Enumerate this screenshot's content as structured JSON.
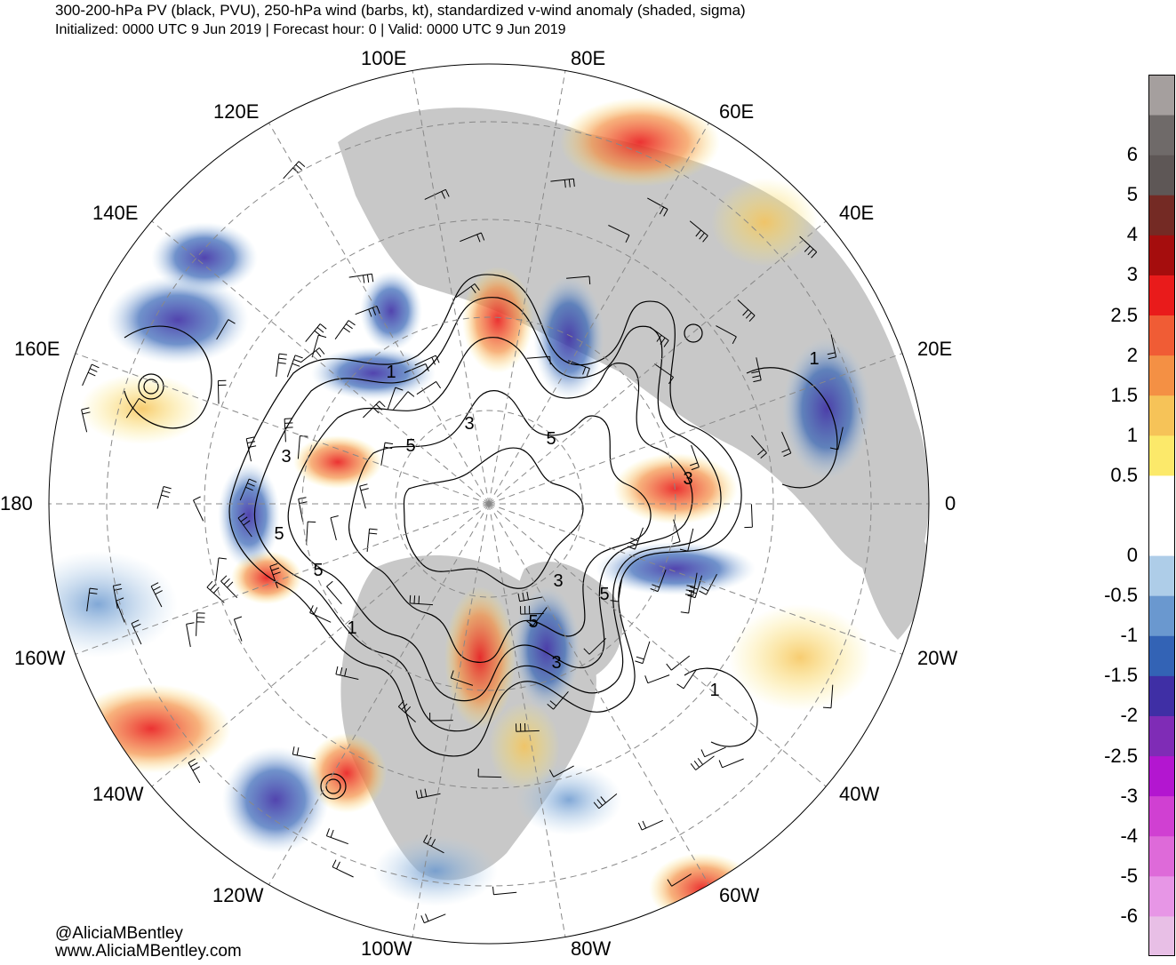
{
  "header": {
    "title": "300-200-hPa PV (black, PVU), 250-hPa wind (barbs, kt), standardized v-wind anomaly (shaded, sigma)",
    "subtitle": "Initialized: 0000 UTC 9 Jun 2019 | Forecast hour: 0 | Valid: 0000 UTC 9 Jun 2019"
  },
  "credits": {
    "handle": "@AliciaMBentley",
    "website": "www.AliciaMBentley.com"
  },
  "map": {
    "projection": "north-polar-stereographic",
    "longitude_labels": [
      {
        "text": "100E",
        "lon": 100
      },
      {
        "text": "80E",
        "lon": 80
      },
      {
        "text": "120E",
        "lon": 120
      },
      {
        "text": "60E",
        "lon": 60
      },
      {
        "text": "140E",
        "lon": 140
      },
      {
        "text": "40E",
        "lon": 40
      },
      {
        "text": "160E",
        "lon": 160
      },
      {
        "text": "20E",
        "lon": 20
      },
      {
        "text": "180",
        "lon": 180
      },
      {
        "text": "0",
        "lon": 0
      },
      {
        "text": "160W",
        "lon": -160
      },
      {
        "text": "20W",
        "lon": -20
      },
      {
        "text": "140W",
        "lon": -140
      },
      {
        "text": "40W",
        "lon": -40
      },
      {
        "text": "120W",
        "lon": -120
      },
      {
        "text": "60W",
        "lon": -60
      },
      {
        "text": "100W",
        "lon": -100
      },
      {
        "text": "80W",
        "lon": -80
      }
    ],
    "pv_contour_labels": [
      "1",
      "3",
      "5",
      "5",
      "3",
      "3",
      "5",
      "5",
      "3",
      "5",
      "1",
      "1",
      "3",
      "5",
      "1"
    ],
    "colors": {
      "land": "#c8c8c8",
      "ocean": "#ffffff",
      "grid": "#888888",
      "pv_contour": "#000000"
    }
  },
  "colorbar": {
    "colors": [
      "#e8bfe6",
      "#e796e6",
      "#de6ad9",
      "#d040d2",
      "#b316d0",
      "#7f2cb6",
      "#3f2fa5",
      "#3363b5",
      "#6a98cf",
      "#aecde8",
      "#ffffff",
      "#ffffff",
      "#fce96a",
      "#f6c358",
      "#f49044",
      "#f05c35",
      "#e91b1b",
      "#a50d0d",
      "#742a24",
      "#5e5756",
      "#6f6a69",
      "#a59f9e"
    ],
    "labels": [
      "-6",
      "-5",
      "-4",
      "-3",
      "-2.5",
      "-2",
      "-1.5",
      "-1",
      "-0.5",
      "0",
      "0.5",
      "1",
      "1.5",
      "2",
      "2.5",
      "3",
      "4",
      "5",
      "6"
    ]
  }
}
